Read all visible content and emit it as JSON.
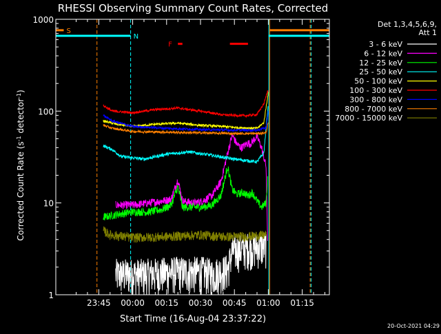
{
  "chart_data": {
    "type": "line",
    "title": "RHESSI Observing Summary Count Rates, Corrected",
    "xlabel": "Start Time (16-Aug-04 23:37:22)",
    "ylabel": "Corrected Count Rate (s",
    "ylabel_sup1": "-1",
    "ylabel_mid": " detector",
    "ylabel_sup2": "-1",
    "ylabel_end": ")",
    "y_scale": "log",
    "ylim": [
      1,
      1000
    ],
    "y_ticks": [
      {
        "value": 1,
        "label": "1"
      },
      {
        "value": 10,
        "label": "10"
      },
      {
        "value": 100,
        "label": "100"
      },
      {
        "value": 1000,
        "label": "1000"
      }
    ],
    "x_unit": "minutes",
    "xlim": [
      -19,
      102
    ],
    "x_ticks": [
      {
        "value": 0,
        "label": "23:45"
      },
      {
        "value": 15,
        "label": "00:00"
      },
      {
        "value": 30,
        "label": "00:15"
      },
      {
        "value": 45,
        "label": "00:30"
      },
      {
        "value": 60,
        "label": "00:45"
      },
      {
        "value": 75,
        "label": "01:00"
      },
      {
        "value": 90,
        "label": "01:15"
      }
    ],
    "legend": {
      "position": "right",
      "header1": "Det 1,3,4,5,6,9,",
      "header2": "Att 1"
    },
    "series": [
      {
        "name": "3 - 6 keV",
        "color": "#ffffff",
        "baseline": 1.6,
        "noise": 0.45,
        "points": [
          [
            7.5,
            1.7
          ],
          [
            20,
            1.7
          ],
          [
            35,
            1.8
          ],
          [
            46,
            1.8
          ],
          [
            50,
            1.7
          ],
          [
            57,
            1.9
          ],
          [
            59,
            3.0
          ],
          [
            66,
            3.3
          ],
          [
            74,
            3.4
          ]
        ]
      },
      {
        "name": "6 - 12 keV",
        "color": "#ff00ff",
        "baseline": 9.5,
        "noise": 0.1,
        "points": [
          [
            7.5,
            9.5
          ],
          [
            15,
            9.5
          ],
          [
            22,
            10
          ],
          [
            28,
            10.5
          ],
          [
            32,
            11
          ],
          [
            35,
            18
          ],
          [
            37,
            10.5
          ],
          [
            42,
            10
          ],
          [
            46,
            10.5
          ],
          [
            50,
            12
          ],
          [
            54,
            17
          ],
          [
            57,
            35
          ],
          [
            59,
            55
          ],
          [
            61,
            44
          ],
          [
            63,
            40
          ],
          [
            66,
            45
          ],
          [
            67,
            44
          ],
          [
            70,
            53
          ],
          [
            72,
            40
          ],
          [
            74,
            25
          ],
          [
            74.8,
            3
          ]
        ]
      },
      {
        "name": "12 - 25 keV",
        "color": "#00ff00",
        "baseline": 7.8,
        "noise": 0.1,
        "points": [
          [
            2,
            7
          ],
          [
            8,
            7.5
          ],
          [
            15,
            8
          ],
          [
            22,
            8
          ],
          [
            28,
            8.5
          ],
          [
            32,
            9.5
          ],
          [
            35,
            15
          ],
          [
            37,
            9
          ],
          [
            42,
            9
          ],
          [
            46,
            9
          ],
          [
            50,
            9.5
          ],
          [
            54,
            12
          ],
          [
            57,
            25
          ],
          [
            59,
            14
          ],
          [
            61,
            12.5
          ],
          [
            64,
            13
          ],
          [
            66,
            12
          ],
          [
            68,
            13
          ],
          [
            70,
            10.5
          ],
          [
            72,
            9
          ],
          [
            74,
            10
          ],
          [
            74.8,
            20
          ]
        ]
      },
      {
        "name": "25 - 50 keV",
        "color": "#00ffff",
        "baseline": 31,
        "noise": 0.04,
        "points": [
          [
            2,
            42
          ],
          [
            6,
            38
          ],
          [
            10,
            32
          ],
          [
            20,
            30
          ],
          [
            30,
            34
          ],
          [
            40,
            36
          ],
          [
            50,
            33
          ],
          [
            60,
            30
          ],
          [
            70,
            28
          ],
          [
            73,
            35
          ],
          [
            75,
            120
          ]
        ]
      },
      {
        "name": "50 - 100 keV",
        "color": "#ffff00",
        "baseline": 70,
        "noise": 0.03,
        "points": [
          [
            2,
            78
          ],
          [
            8,
            72
          ],
          [
            15,
            68
          ],
          [
            25,
            72
          ],
          [
            35,
            74
          ],
          [
            45,
            70
          ],
          [
            55,
            68
          ],
          [
            62,
            66
          ],
          [
            70,
            65
          ],
          [
            73,
            75
          ],
          [
            75,
            160
          ]
        ]
      },
      {
        "name": "100 - 300 keV",
        "color": "#ff0000",
        "baseline": 95,
        "noise": 0.03,
        "points": [
          [
            2,
            115
          ],
          [
            6,
            100
          ],
          [
            15,
            96
          ],
          [
            25,
            104
          ],
          [
            35,
            108
          ],
          [
            45,
            100
          ],
          [
            55,
            91
          ],
          [
            65,
            89
          ],
          [
            70,
            92
          ],
          [
            73,
            120
          ],
          [
            75,
            175
          ]
        ]
      },
      {
        "name": "300 - 800 keV",
        "color": "#0000ff",
        "baseline": 65,
        "noise": 0.03,
        "points": [
          [
            2,
            90
          ],
          [
            6,
            78
          ],
          [
            15,
            68
          ],
          [
            30,
            65
          ],
          [
            45,
            63
          ],
          [
            60,
            62
          ],
          [
            70,
            62
          ],
          [
            74,
            66
          ],
          [
            75,
            100
          ]
        ]
      },
      {
        "name": "800 - 7000 keV",
        "color": "#ff8000",
        "baseline": 60,
        "noise": 0.03,
        "points": [
          [
            2,
            70
          ],
          [
            6,
            65
          ],
          [
            15,
            60
          ],
          [
            30,
            59
          ],
          [
            45,
            58
          ],
          [
            60,
            57
          ],
          [
            70,
            57
          ],
          [
            74,
            58
          ],
          [
            75,
            75
          ]
        ]
      },
      {
        "name": "7000 - 15000 keV",
        "color": "#808000",
        "baseline": 4.2,
        "noise": 0.12,
        "points": [
          [
            2,
            5
          ],
          [
            5,
            4.5
          ],
          [
            15,
            4.2
          ],
          [
            30,
            4.3
          ],
          [
            45,
            4.5
          ],
          [
            55,
            4.3
          ],
          [
            65,
            4.3
          ],
          [
            70,
            4.4
          ],
          [
            74,
            4.5
          ]
        ]
      }
    ],
    "vlines": [
      {
        "x": -0.8,
        "color": "#ff8000",
        "style": "dashed"
      },
      {
        "x": 14.1,
        "color": "#00ffff",
        "style": "dashed"
      },
      {
        "x": 75.2,
        "color": "#00ffff",
        "style": "solid"
      },
      {
        "x": 75.6,
        "color": "#ff8000",
        "style": "solid"
      },
      {
        "x": 93.5,
        "color": "#ff8000",
        "style": "dashed"
      },
      {
        "x": 93.9,
        "color": "#00ffff",
        "style": "dashed"
      }
    ],
    "flags": [
      {
        "label": "S",
        "color": "#ff8000",
        "y_value": 760,
        "segments": [
          [
            -19,
            -15.5
          ],
          [
            75.6,
            102
          ]
        ]
      },
      {
        "label": "N",
        "color": "#00ffff",
        "y_value": 660,
        "segments": [
          [
            -19,
            14.1
          ],
          [
            75.2,
            102
          ]
        ]
      },
      {
        "label": "F",
        "color": "#ff0000",
        "y_value": 540,
        "segments": [
          [
            35,
            37
          ],
          [
            58,
            66
          ]
        ]
      }
    ],
    "grid": false
  },
  "timestamp": "20-Oct-2021 04:29"
}
